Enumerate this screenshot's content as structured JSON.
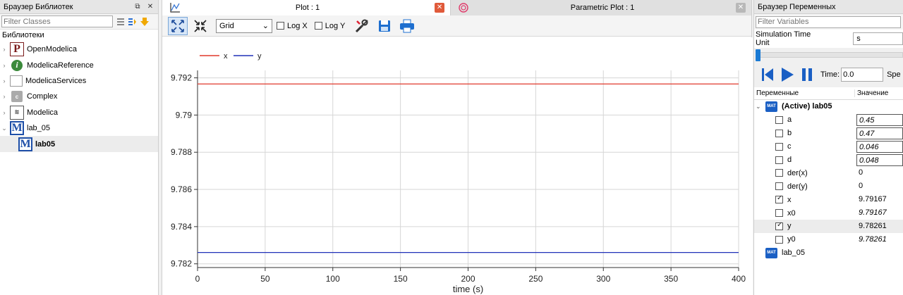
{
  "library_browser": {
    "title": "Браузер Библиотек",
    "filter_placeholder": "Filter Classes",
    "section_label": "Библиотеки",
    "items": [
      {
        "label": "OpenModelica"
      },
      {
        "label": "ModelicaReference"
      },
      {
        "label": "ModelicaServices"
      },
      {
        "label": "Complex"
      },
      {
        "label": "Modelica"
      },
      {
        "label": "lab_05"
      },
      {
        "label": "lab05"
      }
    ]
  },
  "plot_tabs": {
    "tab1": {
      "label": "Plot : 1"
    },
    "tab2": {
      "label": "Parametric Plot : 1"
    }
  },
  "plot_toolbar": {
    "grid_select": "Grid",
    "log_x": "Log X",
    "log_y": "Log Y"
  },
  "chart_data": {
    "type": "line",
    "xlabel": "time (s)",
    "xlim": [
      0,
      400
    ],
    "ylim": [
      9.7818,
      9.7924
    ],
    "x_ticks": [
      0,
      50,
      100,
      150,
      200,
      250,
      300,
      350,
      400
    ],
    "y_ticks": [
      9.782,
      9.784,
      9.786,
      9.788,
      9.79,
      9.792
    ],
    "y_tick_labels": [
      "9.782",
      "9.784",
      "9.786",
      "9.788",
      "9.79",
      "9.792"
    ],
    "grid": true,
    "legend_placement": "top-left",
    "series": [
      {
        "name": "x",
        "color": "#e0392b",
        "x": [
          0,
          400
        ],
        "y": [
          9.79167,
          9.79167
        ]
      },
      {
        "name": "y",
        "color": "#2030b8",
        "x": [
          0,
          400
        ],
        "y": [
          9.78261,
          9.78261
        ]
      }
    ]
  },
  "variables_browser": {
    "title": "Браузер Переменных",
    "filter_placeholder": "Filter Variables",
    "sim_time_unit_label": "Simulation Time Unit",
    "sim_time_unit_value": "s",
    "time_label": "Time:",
    "time_value": "0.0",
    "speed_label": "Spe",
    "col_variables": "Переменные",
    "col_value": "Значение",
    "active_model": "(Active) lab05",
    "variables": [
      {
        "name": "a",
        "value": "0.45",
        "checked": false,
        "editable": true
      },
      {
        "name": "b",
        "value": "0.47",
        "checked": false,
        "editable": true
      },
      {
        "name": "c",
        "value": "0.046",
        "checked": false,
        "editable": true
      },
      {
        "name": "d",
        "value": "0.048",
        "checked": false,
        "editable": true
      },
      {
        "name": "der(x)",
        "value": "0",
        "checked": false,
        "editable": false
      },
      {
        "name": "der(y)",
        "value": "0",
        "checked": false,
        "editable": false
      },
      {
        "name": "x",
        "value": "9.79167",
        "checked": true,
        "editable": false
      },
      {
        "name": "x0",
        "value": "9.79167",
        "checked": false,
        "editable": false,
        "italic": true
      },
      {
        "name": "y",
        "value": "9.78261",
        "checked": true,
        "editable": false
      },
      {
        "name": "y0",
        "value": "9.78261",
        "checked": false,
        "editable": false,
        "italic": true
      }
    ],
    "dataset2": "lab_05"
  }
}
